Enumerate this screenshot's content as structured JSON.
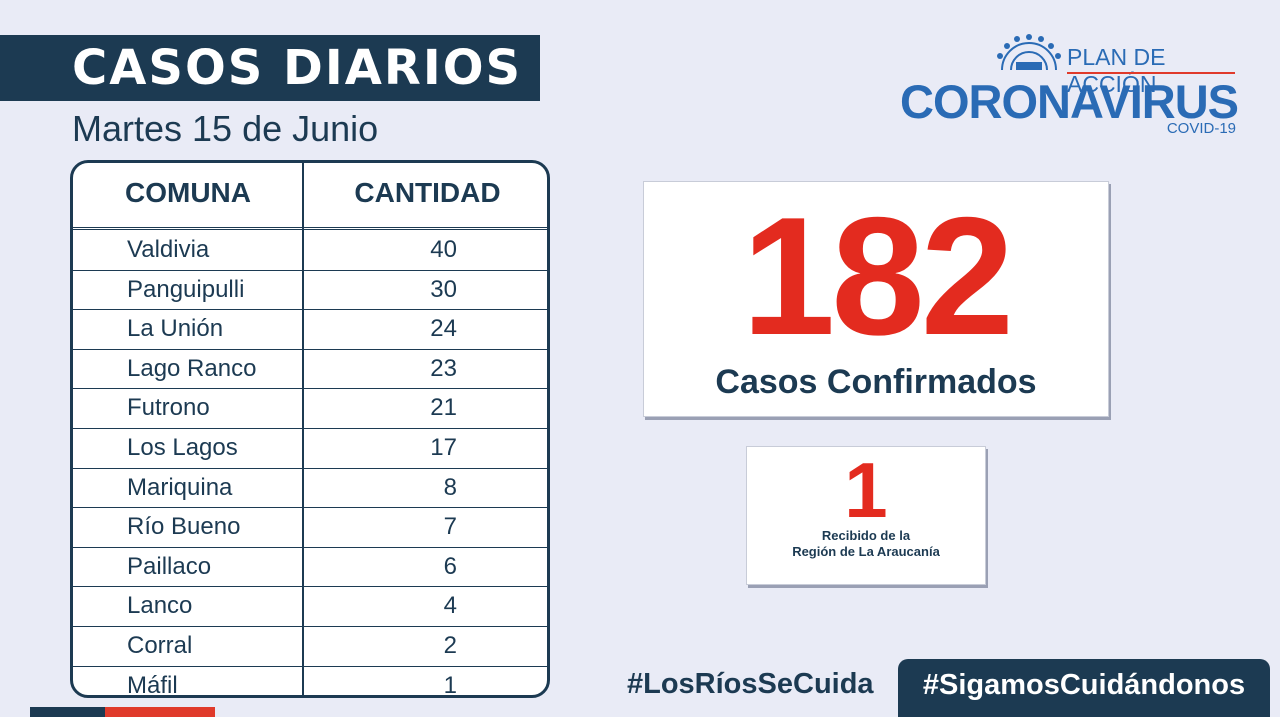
{
  "header": {
    "title": "CASOS DIARIOS",
    "date": "Martes 15 de Junio"
  },
  "logo": {
    "plan": "PLAN DE ACCIÓN",
    "main": "CORONAVIRUS",
    "sub": "COVID-19"
  },
  "table": {
    "headers": [
      "COMUNA",
      "CANTIDAD"
    ],
    "rows": [
      {
        "comuna": "Valdivia",
        "cantidad": "40"
      },
      {
        "comuna": "Panguipulli",
        "cantidad": "30"
      },
      {
        "comuna": "La Unión",
        "cantidad": "24"
      },
      {
        "comuna": "Lago Ranco",
        "cantidad": "23"
      },
      {
        "comuna": "Futrono",
        "cantidad": "21"
      },
      {
        "comuna": "Los Lagos",
        "cantidad": "17"
      },
      {
        "comuna": "Mariquina",
        "cantidad": "8"
      },
      {
        "comuna": "Río Bueno",
        "cantidad": "7"
      },
      {
        "comuna": "Paillaco",
        "cantidad": "6"
      },
      {
        "comuna": "Lanco",
        "cantidad": "4"
      },
      {
        "comuna": "Corral",
        "cantidad": "2"
      },
      {
        "comuna": "Máfil",
        "cantidad": "1"
      }
    ]
  },
  "confirmed": {
    "number": "182",
    "label": "Casos Confirmados"
  },
  "received": {
    "number": "1",
    "line1": "Recibido de la",
    "line2": "Región de La Araucanía"
  },
  "hashtags": {
    "first": "#LosRíosSeCuida",
    "second": "#SigamosCuidándonos"
  },
  "colors": {
    "navy": "#1c3a52",
    "red": "#e32b1f",
    "blue": "#2a6bb5",
    "background": "#e9ebf6"
  },
  "icons": [
    "coronavirus-icon"
  ]
}
